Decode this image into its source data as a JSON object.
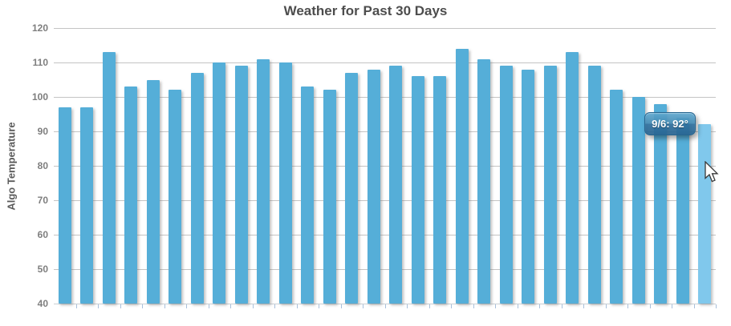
{
  "chart_data": {
    "type": "bar",
    "title": "Weather for Past 30 Days",
    "xlabel": "",
    "ylabel": "Algo Temperature",
    "ylim": [
      40,
      120
    ],
    "ytick_interval": 10,
    "ytick_labels": [
      "120",
      "110",
      "100",
      "90",
      "80",
      "70",
      "60",
      "50",
      "40"
    ],
    "grid": true,
    "legend": "none",
    "num_bars": 30,
    "values": [
      97,
      97,
      113,
      103,
      105,
      102,
      107,
      110,
      109,
      111,
      110,
      103,
      102,
      107,
      108,
      109,
      106,
      106,
      114,
      111,
      109,
      108,
      109,
      113,
      109,
      102,
      100,
      98,
      94,
      92
    ],
    "highlighted_index": 29,
    "tooltip": {
      "text": "9/6: 92°",
      "date": "9/6",
      "value": 92
    },
    "colors": {
      "bar": "#55AED8",
      "bar_highlight": "#80C8EC",
      "grid": "#C4C4C4",
      "axis": "#CBD0D5",
      "tick": "#A9C0DB",
      "title": "#4D4D4D",
      "label": "#7E7E7E",
      "ylabel_title": "#5B5B5B",
      "tooltip_border": "#27658F",
      "tooltip_text": "#FFFFFF"
    }
  }
}
